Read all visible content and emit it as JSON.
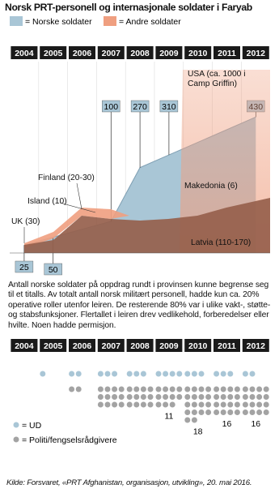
{
  "title": "Norsk PRT-personell og internasjonale soldater i Faryab",
  "years": [
    "2004",
    "2005",
    "2006",
    "2007",
    "2008",
    "2009",
    "2010",
    "2011",
    "2012"
  ],
  "chart_data": {
    "type": "area",
    "x": [
      2004,
      2005,
      2007,
      2008,
      2009,
      2012
    ],
    "series": [
      {
        "name": "= Norske soldater",
        "color": "#a9c6d6",
        "values": [
          25,
          50,
          100,
          270,
          310,
          430
        ]
      }
    ],
    "others": {
      "name": "= Andre soldater",
      "color": "#ef9f80",
      "labels": [
        "UK (30)",
        "Island (10)",
        "Finland (20-30)",
        "Makedonia (6)",
        "USA (ca. 1000 i Camp Griffin)",
        "Latvia (110-170)"
      ]
    }
  },
  "text": "Antall norske soldater på oppdrag rundt i provinsen kunne begrense seg til et titalls. Av totalt antall norsk militært personell, hadde kun ca. 20% operative roller utenfor leiren. De resterende 80% var i ulike vakt-, støtte- og stabsfunksjoner. Flertallet i leiren drev vedlikehold, forberedelser eller hvilte. Noen hadde permisjon.",
  "dots": {
    "ud": {
      "name": "= UD",
      "color": "#a9c6d6",
      "counts": [
        0,
        1,
        2,
        3,
        3,
        4,
        3,
        3,
        2
      ]
    },
    "police": {
      "name": "= Politi/fengselsrådgivere",
      "color": "#a3a3a3",
      "counts": [
        0,
        0,
        2,
        12,
        12,
        11,
        18,
        16,
        16
      ],
      "value_labels": [
        null,
        null,
        null,
        null,
        null,
        "11",
        "18",
        "16",
        "16"
      ]
    }
  },
  "source": "Kilde: Forsvaret, «PRT Afghanistan, organisasjon, utvikling», 20. mai 2016."
}
